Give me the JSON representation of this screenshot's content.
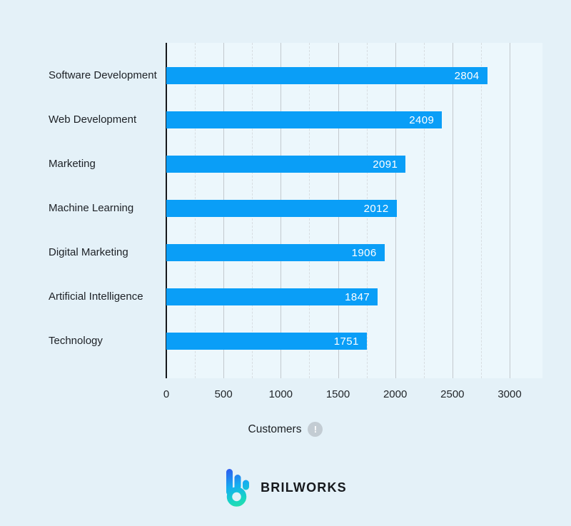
{
  "chart_data": {
    "type": "bar",
    "orientation": "horizontal",
    "title": "",
    "categories": [
      "Software Development",
      "Web Development",
      "Marketing",
      "Machine Learning",
      "Digital Marketing",
      "Artificial Intelligence",
      "Technology"
    ],
    "values": [
      2804,
      2409,
      2091,
      2012,
      1906,
      1847,
      1751
    ],
    "xlabel": "Customers",
    "ylabel": "",
    "xlim": [
      0,
      3000
    ],
    "x_ticks_major": [
      0,
      500,
      1000,
      1500,
      2000,
      2500,
      3000
    ],
    "x_ticks_minor": [
      250,
      750,
      1250,
      1750,
      2250,
      2750
    ],
    "grid": true,
    "legend": false,
    "value_label_position": "inside-end",
    "bar_color": "#0a9ef7"
  },
  "colors": {
    "page_background": "#e4f1f8",
    "plot_background": "#ecf7fc",
    "bar": "#0a9ef7",
    "value_label_text": "#ffffff",
    "gridline_major": "#c3c9ce",
    "gridline_minor": "#d7dde1",
    "axis_line": "#14181c",
    "info_icon_background": "#c3ccd3",
    "logo_gradient_top": "#2f5cf0",
    "logo_gradient_mid": "#15aef0",
    "logo_gradient_bottom": "#27dfa9",
    "brand_text": "#16191d"
  },
  "axis_title": {
    "info_glyph": "!"
  },
  "footer": {
    "brand": "BRILWORKS"
  }
}
